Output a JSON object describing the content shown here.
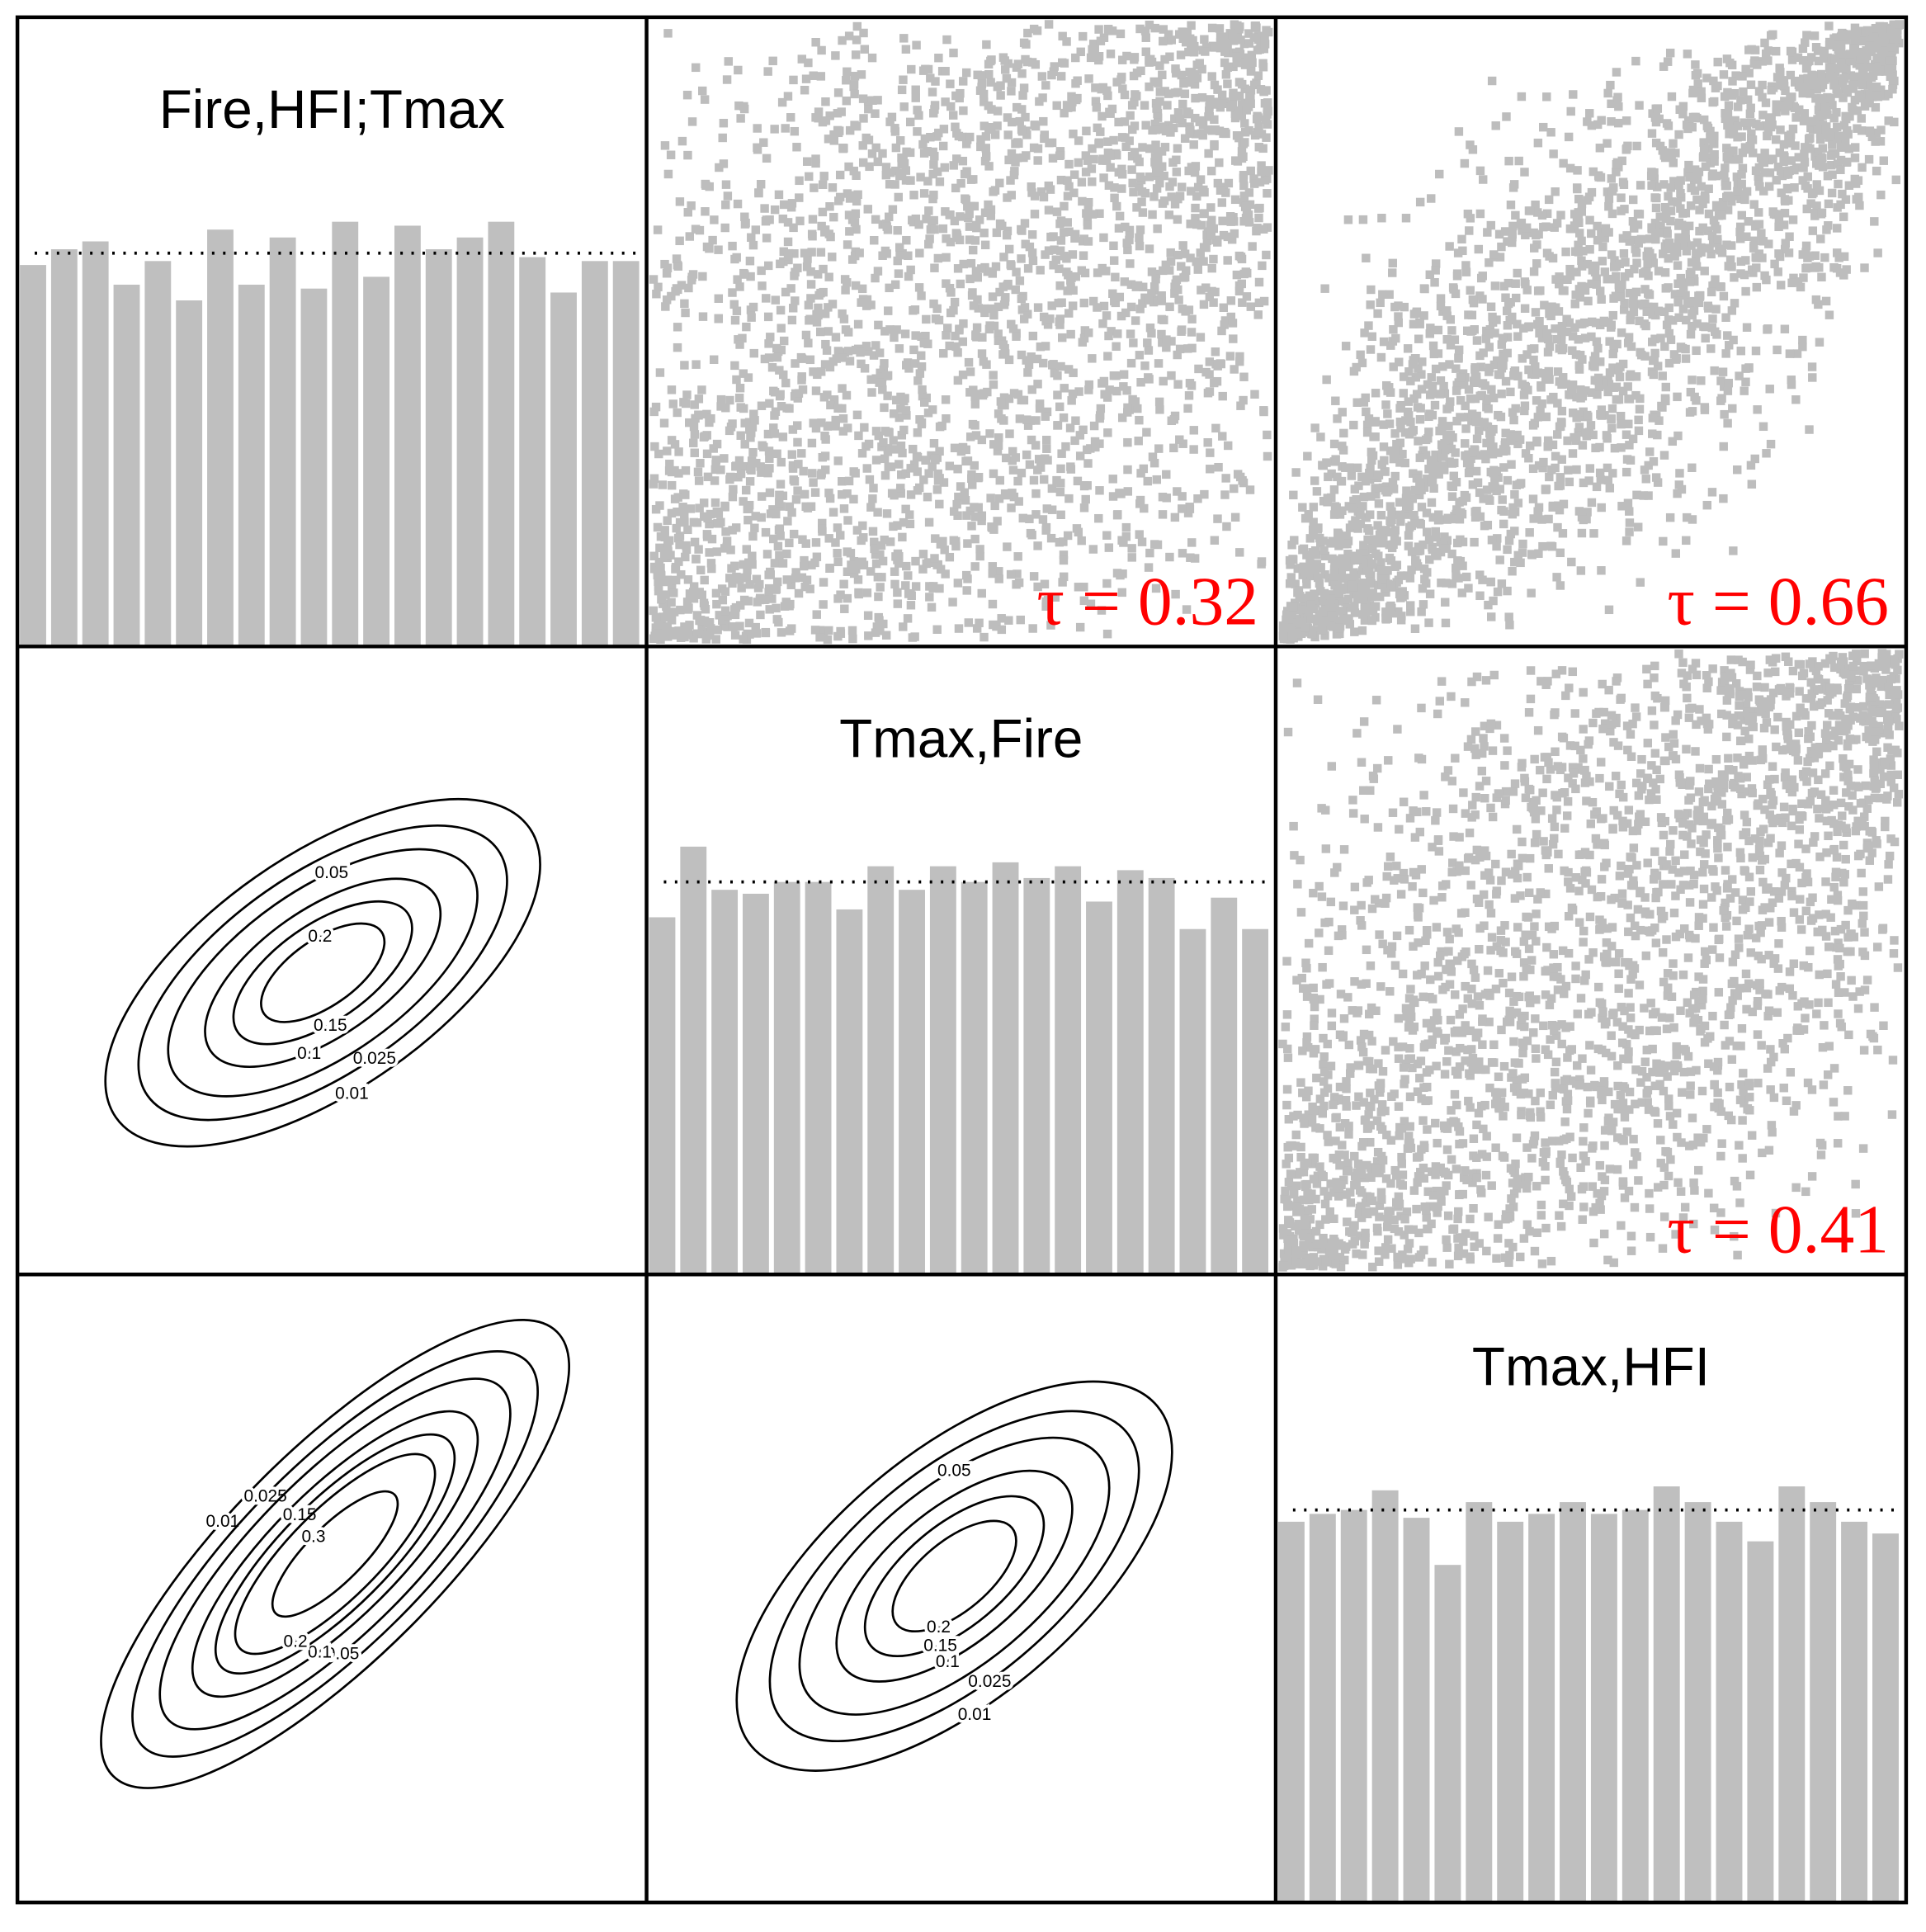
{
  "chart_data": [
    {
      "type": "histogram",
      "title": "Fire,HFI;Tmax",
      "xlim": [
        0,
        1
      ],
      "ylim": [
        0,
        1.6
      ],
      "reference": 1,
      "bins": [
        0,
        0.05,
        0.1,
        0.15,
        0.2,
        0.25,
        0.3,
        0.35,
        0.4,
        0.45,
        0.5,
        0.55,
        0.6,
        0.65,
        0.7,
        0.75,
        0.8,
        0.85,
        0.9,
        0.95,
        1
      ],
      "values": [
        0.97,
        1.01,
        1.03,
        0.92,
        0.98,
        0.88,
        1.06,
        0.92,
        1.04,
        0.91,
        1.08,
        0.94,
        1.07,
        1.01,
        1.04,
        1.08,
        0.99,
        0.9,
        0.98,
        0.98
      ]
    },
    {
      "type": "scatter",
      "tau": 0.32,
      "tau_label": "τ = 0.32"
    },
    {
      "type": "scatter",
      "tau": 0.66,
      "tau_label": "τ = 0.66"
    },
    {
      "type": "contour",
      "levels": [
        0.01,
        0.025,
        0.05,
        0.1,
        0.15,
        0.2
      ]
    },
    {
      "type": "histogram",
      "title": "Tmax,Fire",
      "xlim": [
        0,
        1
      ],
      "ylim": [
        0,
        1.6
      ],
      "reference": 1,
      "bins": [
        0,
        0.05,
        0.1,
        0.15,
        0.2,
        0.25,
        0.3,
        0.35,
        0.4,
        0.45,
        0.5,
        0.55,
        0.6,
        0.65,
        0.7,
        0.75,
        0.8,
        0.85,
        0.9,
        0.95,
        1
      ],
      "values": [
        0.91,
        1.09,
        0.98,
        0.97,
        1.0,
        1.0,
        0.93,
        1.04,
        0.98,
        1.04,
        1.0,
        1.05,
        1.01,
        1.04,
        0.95,
        1.03,
        1.01,
        0.88,
        0.96,
        0.88
      ]
    },
    {
      "type": "scatter",
      "tau": 0.41,
      "tau_label": "τ = 0.41"
    },
    {
      "type": "contour",
      "levels": [
        0.01,
        0.025,
        0.05,
        0.1,
        0.15,
        0.2,
        0.3
      ]
    },
    {
      "type": "contour",
      "levels": [
        0.01,
        0.025,
        0.05,
        0.1,
        0.15,
        0.2
      ]
    },
    {
      "type": "histogram",
      "title": "Tmax,HFI",
      "xlim": [
        0,
        1
      ],
      "ylim": [
        0,
        1.6
      ],
      "reference": 1,
      "bins": [
        0,
        0.05,
        0.1,
        0.15,
        0.2,
        0.25,
        0.3,
        0.35,
        0.4,
        0.45,
        0.5,
        0.55,
        0.6,
        0.65,
        0.7,
        0.75,
        0.8,
        0.85,
        0.9,
        0.95,
        1
      ],
      "values": [
        0.97,
        0.99,
        1.0,
        1.05,
        0.98,
        0.86,
        1.02,
        0.97,
        0.99,
        1.02,
        0.99,
        1.0,
        1.06,
        1.02,
        0.97,
        0.92,
        1.06,
        1.02,
        0.97,
        0.94
      ]
    }
  ]
}
